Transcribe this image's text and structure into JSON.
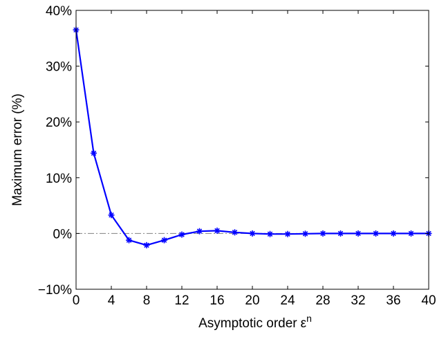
{
  "chart_data": {
    "type": "line",
    "title": "",
    "xlabel": "Asymptotic order",
    "xlabel_symbol": "ε",
    "xlabel_superscript": "n",
    "ylabel": "Maximum error (%)",
    "xlim": [
      0,
      40
    ],
    "ylim": [
      -10,
      40
    ],
    "xticks": [
      0,
      4,
      8,
      12,
      16,
      20,
      24,
      28,
      32,
      36,
      40
    ],
    "yticks": [
      -10,
      0,
      10,
      20,
      30,
      40
    ],
    "ytick_labels": [
      "−10%",
      "0%",
      "10%",
      "20%",
      "30%",
      "40%"
    ],
    "grid": false,
    "reference_line": {
      "y": 0,
      "style": "dash-dot",
      "color": "#808080"
    },
    "series": [
      {
        "color": "#0000ff",
        "marker": "asterisk",
        "x": [
          0,
          2,
          4,
          6,
          8,
          10,
          12,
          14,
          16,
          18,
          20,
          22,
          24,
          26,
          28,
          30,
          32,
          34,
          36,
          38,
          40
        ],
        "y": [
          36.5,
          14.4,
          3.3,
          -1.2,
          -2.1,
          -1.2,
          -0.2,
          0.4,
          0.5,
          0.2,
          0.0,
          -0.1,
          -0.1,
          -0.05,
          0.0,
          0.0,
          0.0,
          0.0,
          0.0,
          0.0,
          0.0
        ]
      }
    ]
  }
}
